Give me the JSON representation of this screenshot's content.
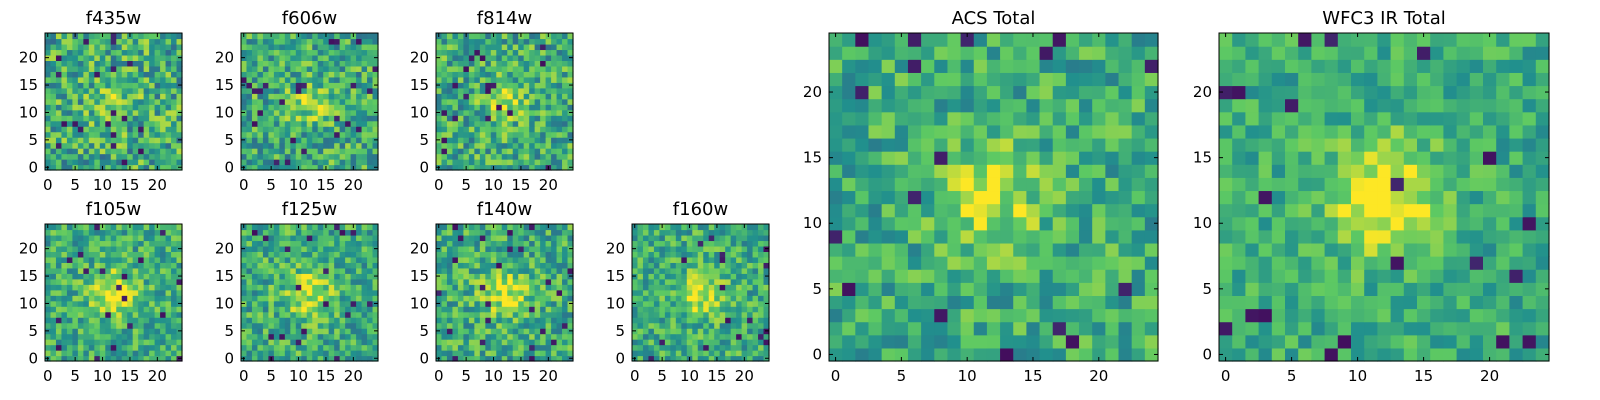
{
  "figure": {
    "background": "#ffffff",
    "colormap": "viridis",
    "colormap_stops": [
      "#440154",
      "#3b528b",
      "#21908d",
      "#5dc963",
      "#fde725"
    ]
  },
  "chart_data": [
    {
      "type": "heatmap",
      "title": "f435w",
      "xticks": [
        0,
        5,
        10,
        15,
        20
      ],
      "yticks": [
        0,
        5,
        10,
        15,
        20
      ],
      "xlim": [
        0,
        25
      ],
      "ylim": [
        0,
        25
      ],
      "grid_size": [
        25,
        25
      ],
      "center": [
        12,
        12
      ],
      "blob_sigma": 2.6,
      "blob_amplitude": 0.18,
      "noise_level": 0.55,
      "noise_seed": 11
    },
    {
      "type": "heatmap",
      "title": "f606w",
      "xticks": [
        0,
        5,
        10,
        15,
        20
      ],
      "yticks": [
        0,
        5,
        10,
        15,
        20
      ],
      "xlim": [
        0,
        25
      ],
      "ylim": [
        0,
        25
      ],
      "grid_size": [
        25,
        25
      ],
      "center": [
        12,
        12
      ],
      "blob_sigma": 2.4,
      "blob_amplitude": 0.28,
      "noise_level": 0.5,
      "noise_seed": 23
    },
    {
      "type": "heatmap",
      "title": "f814w",
      "xticks": [
        0,
        5,
        10,
        15,
        20
      ],
      "yticks": [
        0,
        5,
        10,
        15,
        20
      ],
      "xlim": [
        0,
        25
      ],
      "ylim": [
        0,
        25
      ],
      "grid_size": [
        25,
        25
      ],
      "center": [
        12,
        12
      ],
      "blob_sigma": 2.4,
      "blob_amplitude": 0.28,
      "noise_level": 0.5,
      "noise_seed": 37
    },
    {
      "type": "heatmap",
      "title": "f105w",
      "xticks": [
        0,
        5,
        10,
        15,
        20
      ],
      "yticks": [
        0,
        5,
        10,
        15,
        20
      ],
      "xlim": [
        0,
        25
      ],
      "ylim": [
        0,
        25
      ],
      "grid_size": [
        25,
        25
      ],
      "center": [
        12,
        12
      ],
      "blob_sigma": 3.0,
      "blob_amplitude": 0.35,
      "noise_level": 0.42,
      "noise_seed": 41
    },
    {
      "type": "heatmap",
      "title": "f125w",
      "xticks": [
        0,
        5,
        10,
        15,
        20
      ],
      "yticks": [
        0,
        5,
        10,
        15,
        20
      ],
      "xlim": [
        0,
        25
      ],
      "ylim": [
        0,
        25
      ],
      "grid_size": [
        25,
        25
      ],
      "center": [
        12,
        12
      ],
      "blob_sigma": 3.2,
      "blob_amplitude": 0.3,
      "noise_level": 0.45,
      "noise_seed": 53
    },
    {
      "type": "heatmap",
      "title": "f140w",
      "xticks": [
        0,
        5,
        10,
        15,
        20
      ],
      "yticks": [
        0,
        5,
        10,
        15,
        20
      ],
      "xlim": [
        0,
        25
      ],
      "ylim": [
        0,
        25
      ],
      "grid_size": [
        25,
        25
      ],
      "center": [
        12,
        12
      ],
      "blob_sigma": 3.2,
      "blob_amplitude": 0.3,
      "noise_level": 0.45,
      "noise_seed": 67
    },
    {
      "type": "heatmap",
      "title": "f160w",
      "xticks": [
        0,
        5,
        10,
        15,
        20
      ],
      "yticks": [
        0,
        5,
        10,
        15,
        20
      ],
      "xlim": [
        0,
        25
      ],
      "ylim": [
        0,
        25
      ],
      "grid_size": [
        25,
        25
      ],
      "center": [
        12,
        12
      ],
      "blob_sigma": 2.8,
      "blob_amplitude": 0.35,
      "noise_level": 0.42,
      "noise_seed": 79
    },
    {
      "type": "heatmap",
      "title": "ACS Total",
      "xticks": [
        0,
        5,
        10,
        15,
        20
      ],
      "yticks": [
        0,
        5,
        10,
        15,
        20
      ],
      "xlim": [
        0,
        25
      ],
      "ylim": [
        0,
        25
      ],
      "grid_size": [
        25,
        25
      ],
      "center": [
        12,
        12
      ],
      "blob_sigma": 2.8,
      "blob_amplitude": 0.3,
      "noise_level": 0.4,
      "noise_seed": 97
    },
    {
      "type": "heatmap",
      "title": "WFC3 IR Total",
      "xticks": [
        0,
        5,
        10,
        15,
        20
      ],
      "yticks": [
        0,
        5,
        10,
        15,
        20
      ],
      "xlim": [
        0,
        25
      ],
      "ylim": [
        0,
        25
      ],
      "grid_size": [
        25,
        25
      ],
      "center": [
        12,
        12
      ],
      "blob_sigma": 3.0,
      "blob_amplitude": 0.42,
      "noise_level": 0.32,
      "noise_seed": 113
    }
  ]
}
